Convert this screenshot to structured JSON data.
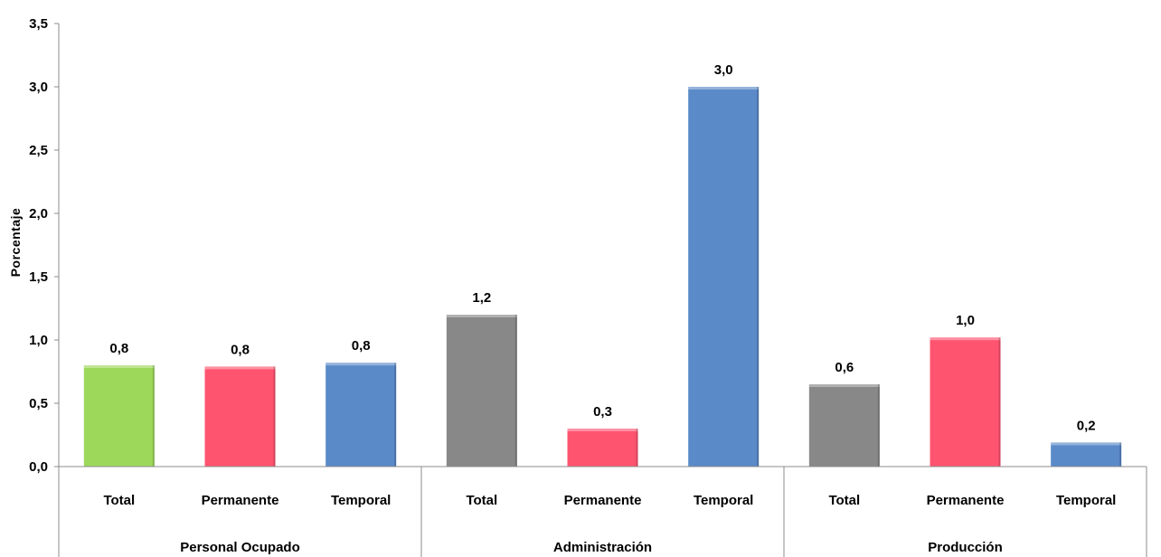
{
  "chart_data": {
    "type": "bar",
    "ylabel": "Porcentaje",
    "ylim": [
      0,
      3.5
    ],
    "yticks": [
      "0,0",
      "0,5",
      "1,0",
      "1,5",
      "2,0",
      "2,5",
      "3,0",
      "3,5"
    ],
    "grid": false,
    "groups": [
      {
        "name": "Personal Ocupado",
        "bars": [
          {
            "category": "Total",
            "value": 0.8,
            "label": "0,8",
            "color": "#9ED85A"
          },
          {
            "category": "Permanente",
            "value": 0.79,
            "label": "0,8",
            "color": "#FF5470"
          },
          {
            "category": "Temporal",
            "value": 0.82,
            "label": "0,8",
            "color": "#5A8AC8"
          }
        ]
      },
      {
        "name": "Administración",
        "bars": [
          {
            "category": "Total",
            "value": 1.2,
            "label": "1,2",
            "color": "#888888"
          },
          {
            "category": "Permanente",
            "value": 0.3,
            "label": "0,3",
            "color": "#FF5470"
          },
          {
            "category": "Temporal",
            "value": 3.0,
            "label": "3,0",
            "color": "#5A8AC8"
          }
        ]
      },
      {
        "name": "Producción",
        "bars": [
          {
            "category": "Total",
            "value": 0.65,
            "label": "0,6",
            "color": "#888888"
          },
          {
            "category": "Permanente",
            "value": 1.02,
            "label": "1,0",
            "color": "#FF5470"
          },
          {
            "category": "Temporal",
            "value": 0.19,
            "label": "0,2",
            "color": "#5A8AC8"
          }
        ]
      }
    ]
  }
}
